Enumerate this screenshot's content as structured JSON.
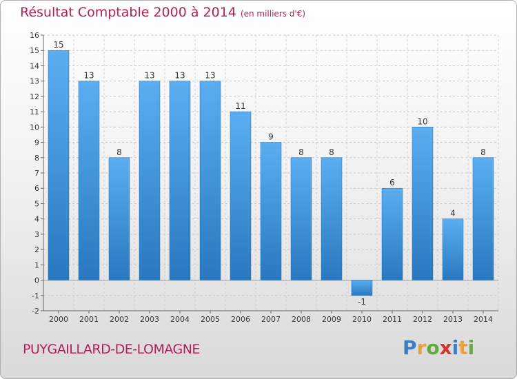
{
  "header": {
    "title": "Résultat Comptable 2000 à 2014",
    "subtitle": "(en milliers d'€)"
  },
  "footer": {
    "place": "PUYGAILLARD-DE-LOMAGNE"
  },
  "logo": {
    "letters": [
      {
        "char": "P",
        "color": "#3a7fc4"
      },
      {
        "char": "r",
        "color": "#e8a23a"
      },
      {
        "char": "o",
        "color": "#5fae3c"
      },
      {
        "char": "x",
        "color": "#d8322f"
      },
      {
        "char": "i",
        "color": "#3a7fc4"
      },
      {
        "char": "t",
        "color": "#e8a23a"
      },
      {
        "char": "i",
        "color": "#5fae3c"
      }
    ]
  },
  "chart_data": {
    "type": "bar",
    "title": "Résultat Comptable 2000 à 2014",
    "subtitle": "(en milliers d'€)",
    "categories": [
      "2000",
      "2001",
      "2002",
      "2003",
      "2004",
      "2005",
      "2006",
      "2007",
      "2008",
      "2009",
      "2010",
      "2011",
      "2012",
      "2013",
      "2014"
    ],
    "values": [
      15,
      13,
      8,
      13,
      13,
      13,
      11,
      9,
      8,
      8,
      -1,
      6,
      10,
      4,
      8
    ],
    "ylim": [
      -2,
      16
    ],
    "yticks": [
      -2,
      -1,
      0,
      1,
      2,
      3,
      4,
      5,
      6,
      7,
      8,
      9,
      10,
      11,
      12,
      13,
      14,
      15,
      16
    ],
    "grid": true,
    "bar_color": "#3b8fd6"
  }
}
